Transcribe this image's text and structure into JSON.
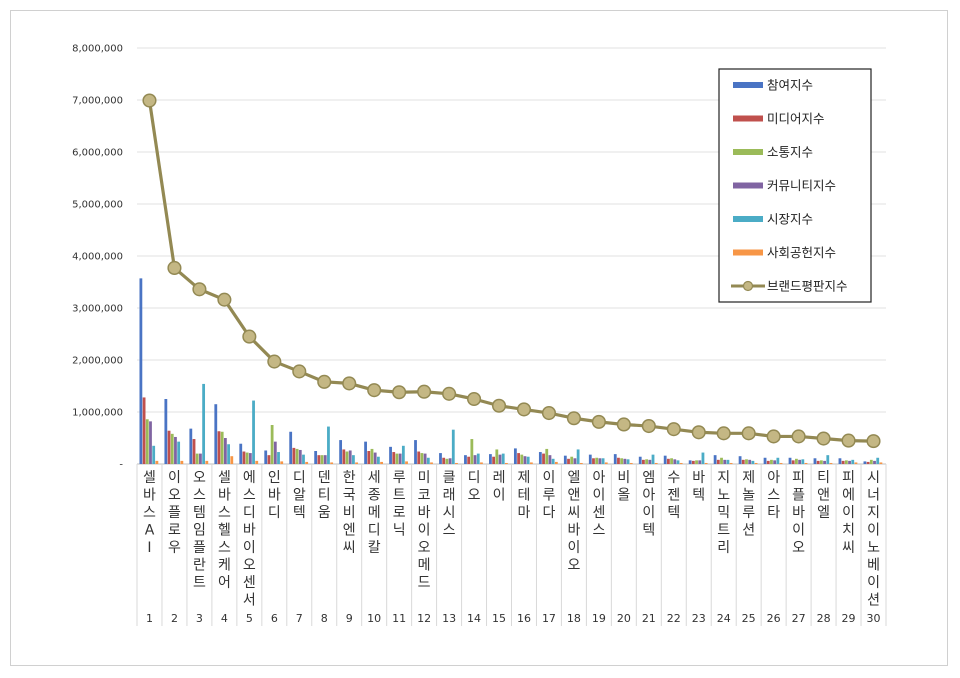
{
  "chart_data": {
    "type": "bar",
    "ylim": [
      0,
      8000000
    ],
    "yticks": [
      "-",
      "1,000,000",
      "2,000,000",
      "3,000,000",
      "4,000,000",
      "5,000,000",
      "6,000,000",
      "7,000,000",
      "8,000,000"
    ],
    "grid": true,
    "legend_position": "top-right",
    "ranks": [
      "1",
      "2",
      "3",
      "4",
      "5",
      "6",
      "7",
      "8",
      "9",
      "10",
      "11",
      "12",
      "13",
      "14",
      "15",
      "16",
      "17",
      "18",
      "19",
      "20",
      "21",
      "22",
      "23",
      "24",
      "25",
      "26",
      "27",
      "28",
      "29",
      "30"
    ],
    "categories": [
      "셀바스AI",
      "이오플로우",
      "오스템임플란트",
      "셀바스헬스케어",
      "에스디바이오센서",
      "인바디",
      "디알텍",
      "덴티움",
      "한국비엔씨",
      "세종메디칼",
      "루트로닉",
      "미코바이오메드",
      "클래시스",
      "디오",
      "레이",
      "제테마",
      "이루다",
      "엘앤씨바이오",
      "아이센스",
      "비올",
      "엠아이텍",
      "수젠텍",
      "바텍",
      "지노믹트리",
      "제놀루션",
      "아스타",
      "피플바이오",
      "티앤엘",
      "피에이치씨",
      "시너지이노베이션"
    ],
    "series": [
      {
        "name": "참여지수",
        "color": "#4a74c4",
        "values": [
          3570000,
          1250000,
          680000,
          1150000,
          390000,
          260000,
          620000,
          250000,
          460000,
          430000,
          330000,
          460000,
          210000,
          170000,
          190000,
          300000,
          230000,
          160000,
          180000,
          190000,
          140000,
          160000,
          70000,
          170000,
          150000,
          120000,
          120000,
          110000,
          110000,
          50000
        ]
      },
      {
        "name": "미디어지수",
        "color": "#c0504d",
        "values": [
          1280000,
          640000,
          480000,
          630000,
          240000,
          170000,
          310000,
          170000,
          280000,
          250000,
          230000,
          240000,
          120000,
          140000,
          140000,
          210000,
          200000,
          100000,
          110000,
          120000,
          80000,
          100000,
          60000,
          80000,
          80000,
          60000,
          70000,
          60000,
          60000,
          40000
        ]
      },
      {
        "name": "소통지수",
        "color": "#9bbb59",
        "values": [
          860000,
          580000,
          200000,
          620000,
          220000,
          750000,
          290000,
          170000,
          240000,
          290000,
          200000,
          210000,
          100000,
          480000,
          280000,
          180000,
          290000,
          140000,
          120000,
          110000,
          90000,
          110000,
          70000,
          120000,
          90000,
          80000,
          100000,
          70000,
          70000,
          80000
        ]
      },
      {
        "name": "커뮤니티지수",
        "color": "#8064a2",
        "values": [
          820000,
          520000,
          200000,
          500000,
          210000,
          430000,
          270000,
          170000,
          260000,
          220000,
          200000,
          200000,
          110000,
          170000,
          180000,
          150000,
          170000,
          110000,
          110000,
          100000,
          80000,
          90000,
          70000,
          80000,
          80000,
          70000,
          80000,
          60000,
          60000,
          60000
        ]
      },
      {
        "name": "시장지수",
        "color": "#4bacc6",
        "values": [
          350000,
          430000,
          1540000,
          380000,
          1220000,
          230000,
          180000,
          720000,
          170000,
          140000,
          350000,
          120000,
          660000,
          200000,
          200000,
          140000,
          100000,
          280000,
          110000,
          90000,
          180000,
          70000,
          220000,
          80000,
          60000,
          120000,
          90000,
          170000,
          80000,
          120000
        ]
      },
      {
        "name": "사회공헌지수",
        "color": "#f79646",
        "values": [
          60000,
          60000,
          60000,
          150000,
          60000,
          50000,
          40000,
          30000,
          30000,
          40000,
          50000,
          30000,
          20000,
          30000,
          20000,
          30000,
          40000,
          20000,
          30000,
          20000,
          20000,
          20000,
          20000,
          20000,
          20000,
          20000,
          20000,
          20000,
          30000,
          30000
        ]
      }
    ],
    "line_series": {
      "name": "브랜드평판지수",
      "color": "#938953",
      "values": [
        6990000,
        3770000,
        3360000,
        3160000,
        2450000,
        1970000,
        1780000,
        1580000,
        1550000,
        1420000,
        1380000,
        1390000,
        1350000,
        1250000,
        1120000,
        1050000,
        980000,
        880000,
        810000,
        760000,
        730000,
        670000,
        610000,
        590000,
        590000,
        530000,
        530000,
        490000,
        450000,
        440000
      ]
    }
  }
}
